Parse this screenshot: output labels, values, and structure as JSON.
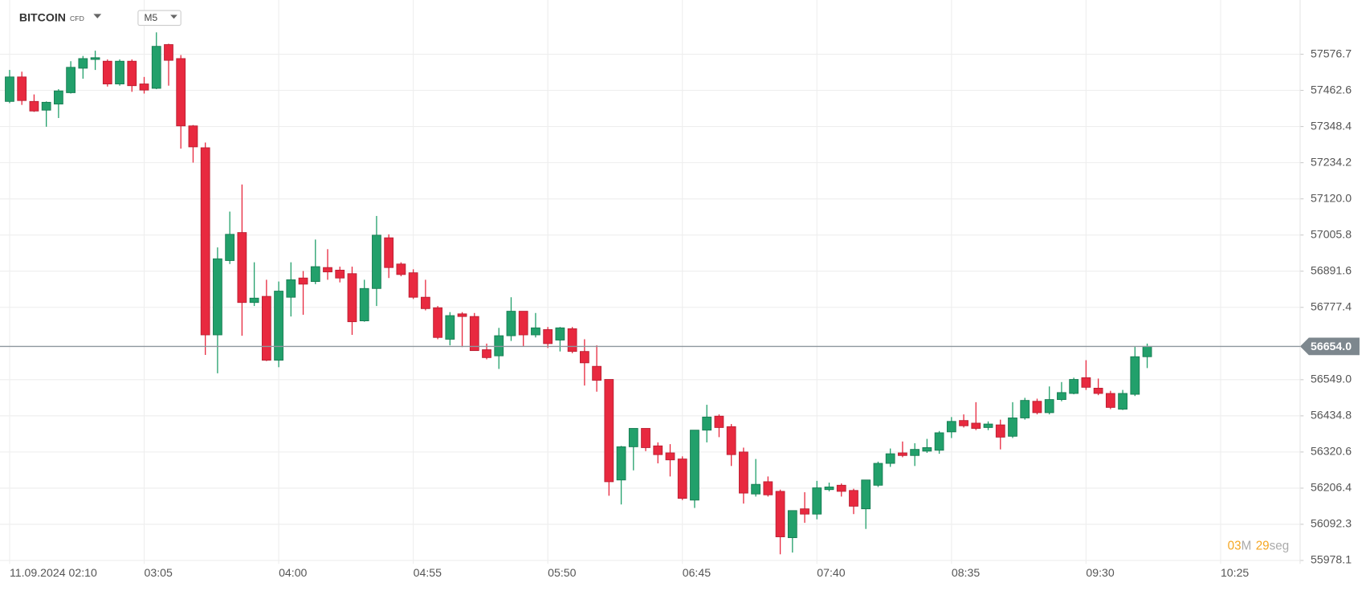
{
  "chart_data": {
    "type": "candlestick",
    "title": "BITCOIN",
    "subtitle": "CFD",
    "timeframe": "M5",
    "up_color": "#22a06b",
    "down_color": "#e8293f",
    "grid": true,
    "x": [
      "02:10",
      "02:15",
      "02:20",
      "02:25",
      "02:30",
      "02:35",
      "02:40",
      "02:45",
      "02:50",
      "02:55",
      "03:00",
      "03:05",
      "03:10",
      "03:15",
      "03:20",
      "03:25",
      "03:30",
      "03:35",
      "03:40",
      "03:45",
      "03:50",
      "03:55",
      "04:00",
      "04:05",
      "04:10",
      "04:15",
      "04:20",
      "04:25",
      "04:30",
      "04:35",
      "04:40",
      "04:45",
      "04:50",
      "04:55",
      "05:00",
      "05:05",
      "05:10",
      "05:15",
      "05:20",
      "05:25",
      "05:30",
      "05:35",
      "05:40",
      "05:45",
      "05:50",
      "05:55",
      "06:00",
      "06:05",
      "06:10",
      "06:15",
      "06:20",
      "06:25",
      "06:30",
      "06:35",
      "06:40",
      "06:45",
      "06:50",
      "06:55",
      "07:00",
      "07:05",
      "07:10",
      "07:15",
      "07:20",
      "07:25",
      "07:30",
      "07:35",
      "07:40",
      "07:45",
      "07:50",
      "07:55",
      "08:00",
      "08:05",
      "08:10",
      "08:15",
      "08:20",
      "08:25",
      "08:30",
      "08:35",
      "08:40",
      "08:45",
      "08:50",
      "08:55",
      "09:00",
      "09:05",
      "09:10",
      "09:15",
      "09:20",
      "09:25",
      "09:30",
      "09:35",
      "09:40",
      "09:45",
      "09:50",
      "09:55"
    ],
    "open": [
      57427.7,
      57505.0,
      57427.7,
      57400.1,
      57419.4,
      57455.3,
      57532.6,
      57560.3,
      57554.7,
      57482.9,
      57554.7,
      57482.9,
      57469.1,
      57607.2,
      57563.0,
      57350.4,
      57281.4,
      56690.5,
      56925.2,
      57013.6,
      56792.7,
      56812.0,
      56610.5,
      56809.3,
      56870.0,
      56859.0,
      56903.1,
      56894.9,
      56883.8,
      56734.7,
      56836.9,
      56997.0,
      56914.2,
      56886.6,
      56809.3,
      56776.1,
      56676.7,
      56756.8,
      56748.5,
      56643.6,
      56624.3,
      56687.8,
      56765.1,
      56690.5,
      56707.1,
      56674.0,
      56709.9,
      56638.1,
      56591.1,
      56549.7,
      56232.2,
      56337.1,
      56395.1,
      56339.9,
      56317.8,
      56298.5,
      56168.7,
      56389.6,
      56433.8,
      56400.6,
      56320.6,
      56188.0,
      56226.7,
      56196.3,
      56050.0,
      56141.1,
      56124.5,
      56201.8,
      56215.6,
      56199.1,
      56141.1,
      56215.6,
      56284.7,
      56317.8,
      56309.5,
      56323.3,
      56326.1,
      56384.1,
      56420.0,
      56411.7,
      56397.9,
      56406.2,
      56370.3,
      56428.2,
      56480.7,
      56444.8,
      56486.2,
      56505.5,
      56555.2,
      56522.1,
      56505.5,
      56455.9,
      56502.8,
      56621.5
    ],
    "high": [
      57527.1,
      57521.6,
      57449.8,
      57427.7,
      57466.4,
      57554.7,
      57571.3,
      57587.9,
      57560.3,
      57560.3,
      57560.3,
      57505.0,
      57645.8,
      57609.9,
      57574.1,
      57353.2,
      57298.0,
      56966.6,
      57079.8,
      57165.4,
      56919.7,
      56864.5,
      56859.0,
      56919.7,
      56892.1,
      56991.5,
      56961.1,
      56905.9,
      56905.9,
      56864.5,
      57066.0,
      57008.0,
      56919.7,
      56897.6,
      56864.5,
      56781.6,
      56762.3,
      56762.3,
      56759.6,
      56662.9,
      56712.6,
      56809.3,
      56765.1,
      56759.6,
      56715.4,
      56715.4,
      56715.4,
      56676.7,
      56657.4,
      56549.7,
      56339.9,
      56395.1,
      56395.1,
      56350.9,
      56345.4,
      56306.8,
      56389.6,
      56469.7,
      56439.3,
      56408.9,
      56334.4,
      56298.5,
      56243.3,
      56201.8,
      56135.6,
      56193.6,
      56229.4,
      56223.9,
      56221.2,
      56204.6,
      56232.2,
      56290.2,
      56331.6,
      56353.7,
      56348.2,
      56362.0,
      56386.8,
      56431.0,
      56439.3,
      56477.9,
      56417.2,
      56422.7,
      56477.9,
      56491.7,
      56489.0,
      56527.6,
      56541.4,
      56555.2,
      56610.5,
      56552.5,
      56513.8,
      56516.6,
      56654.6,
      56662.9
    ],
    "low": [
      57422.2,
      57416.7,
      57394.6,
      57347.7,
      57375.3,
      57452.6,
      57499.5,
      57527.1,
      57474.7,
      57477.4,
      57458.1,
      57452.6,
      57466.4,
      57477.4,
      57278.6,
      57234.5,
      56627.0,
      56569.0,
      56914.2,
      56687.8,
      56781.6,
      56607.7,
      56588.4,
      56748.5,
      56754.0,
      56850.7,
      56864.5,
      56856.2,
      56690.5,
      56732.0,
      56781.6,
      56870.0,
      56875.5,
      56803.7,
      56767.8,
      56676.7,
      56657.4,
      56651.9,
      56640.8,
      56613.2,
      56582.9,
      56671.2,
      56654.6,
      56682.3,
      56649.1,
      56638.1,
      56632.6,
      56530.4,
      56511.1,
      56182.5,
      56154.9,
      56262.6,
      56323.3,
      56284.7,
      56243.3,
      56168.7,
      56143.9,
      56350.9,
      56367.5,
      56276.4,
      56157.7,
      56179.8,
      56179.8,
      55997.5,
      56003.0,
      56096.9,
      56108.0,
      56196.3,
      56179.8,
      56124.5,
      56077.6,
      56210.1,
      56273.6,
      56304.0,
      56276.4,
      56317.8,
      56315.0,
      56364.7,
      56397.9,
      56389.6,
      56389.6,
      56328.8,
      56364.7,
      56422.7,
      56439.3,
      56439.3,
      56480.7,
      56502.8,
      56516.6,
      56500.0,
      56455.9,
      56453.1,
      56497.3,
      56585.6
    ],
    "close": [
      57505.0,
      57430.5,
      57397.4,
      57425.0,
      57460.9,
      57535.4,
      57563.0,
      57565.8,
      57482.9,
      57554.7,
      57477.4,
      57463.6,
      57601.7,
      57557.5,
      57350.4,
      57284.2,
      56690.5,
      56930.7,
      57008.0,
      56792.7,
      56806.5,
      56610.5,
      56828.6,
      56864.5,
      56850.7,
      56905.9,
      56889.3,
      56870.0,
      56732.0,
      56836.9,
      57005.3,
      56903.1,
      56881.1,
      56809.3,
      56773.4,
      56682.3,
      56751.3,
      56748.5,
      56640.8,
      56618.7,
      56687.8,
      56765.1,
      56690.5,
      56712.6,
      56662.9,
      56712.6,
      56638.1,
      56602.2,
      56547.0,
      56226.7,
      56337.1,
      56395.1,
      56334.4,
      56312.3,
      56295.7,
      56174.2,
      56389.6,
      56431.0,
      56397.9,
      56312.3,
      56190.8,
      56218.4,
      56185.3,
      56052.7,
      56135.6,
      56124.5,
      56207.4,
      56210.1,
      56196.3,
      56149.4,
      56232.2,
      56284.7,
      56315.0,
      56309.5,
      56328.8,
      56334.4,
      56381.3,
      56417.2,
      56403.4,
      56395.1,
      56408.9,
      56367.5,
      56428.2,
      56483.5,
      56444.8,
      56486.2,
      56508.3,
      56549.7,
      56524.9,
      56505.5,
      56461.4,
      56505.5,
      56621.5,
      56654.0
    ],
    "ylim": [
      55967.2,
      57725.9
    ],
    "yticks": [
      55978.1,
      56092.3,
      56206.4,
      56320.6,
      56434.8,
      {
        "value": 56549,
        "label": "56549.0"
      },
      56777.4,
      56891.6,
      57005.8,
      {
        "value": 57120,
        "label": "57120.0"
      },
      57234.2,
      57348.4,
      57462.6,
      57576.7
    ],
    "xticks": [
      {
        "value": "02:10",
        "label": "11.09.2024 02:10"
      },
      "03:05",
      "04:00",
      "04:55",
      "05:50",
      "06:45",
      "07:40",
      "08:35",
      "09:30",
      "10:25"
    ],
    "current_price": {
      "value": 56654,
      "label": "56654.0"
    },
    "countdown": {
      "minutes": "03",
      "minutes_unit": "M",
      "seconds": "29",
      "seconds_unit": "seg"
    }
  }
}
